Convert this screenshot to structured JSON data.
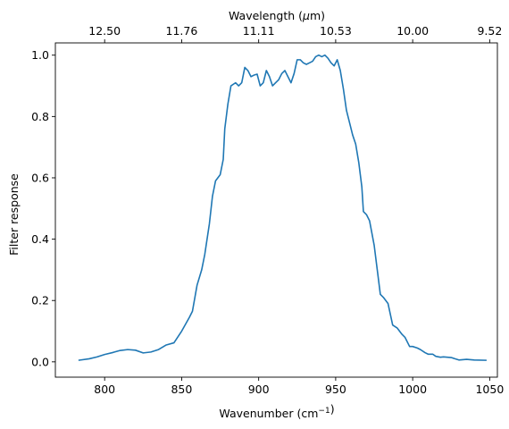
{
  "chart_data": {
    "type": "line",
    "title": "",
    "xlabel": "Wavenumber (cm⁻¹)",
    "ylabel": "Filter response",
    "top_xlabel": "Wavelength (μm)",
    "xlim": [
      768,
      1055
    ],
    "ylim": [
      -0.05,
      1.04
    ],
    "grid": false,
    "line_color": "#1f77b4",
    "x_ticks": [
      800,
      850,
      900,
      950,
      1000,
      1050
    ],
    "x_tick_labels": [
      "800",
      "850",
      "900",
      "950",
      "1000",
      "1050"
    ],
    "y_ticks": [
      0.0,
      0.2,
      0.4,
      0.6,
      0.8,
      1.0
    ],
    "y_tick_labels": [
      "0.0",
      "0.2",
      "0.4",
      "0.6",
      "0.8",
      "1.0"
    ],
    "top_ticks": [
      800,
      850,
      900,
      950,
      1000,
      1050
    ],
    "top_tick_labels": [
      "12.50",
      "11.76",
      "11.11",
      "10.53",
      "10.00",
      "9.52"
    ],
    "series": [
      {
        "x": [
          783,
          790,
          795,
          800,
          805,
          810,
          815,
          820,
          825,
          830,
          835,
          840,
          845,
          850,
          855,
          857,
          860,
          863,
          865,
          868,
          870,
          872,
          875,
          877,
          878,
          880,
          882,
          885,
          887,
          889,
          891,
          893,
          895,
          897,
          899,
          901,
          903,
          905,
          907,
          909,
          911,
          913,
          915,
          917,
          919,
          921,
          923,
          925,
          927,
          929,
          931,
          933,
          935,
          937,
          939,
          941,
          943,
          945,
          947,
          949,
          951,
          953,
          955,
          957,
          959,
          961,
          963,
          965,
          967,
          968,
          970,
          972,
          975,
          977,
          979,
          981,
          984,
          987,
          990,
          993,
          995,
          998,
          1000,
          1003,
          1005,
          1008,
          1010,
          1013,
          1015,
          1018,
          1020,
          1025,
          1030,
          1035,
          1040,
          1048
        ],
        "y": [
          0.005,
          0.01,
          0.016,
          0.024,
          0.03,
          0.037,
          0.04,
          0.038,
          0.029,
          0.032,
          0.04,
          0.055,
          0.062,
          0.1,
          0.145,
          0.165,
          0.25,
          0.3,
          0.35,
          0.45,
          0.54,
          0.59,
          0.61,
          0.66,
          0.76,
          0.84,
          0.9,
          0.91,
          0.9,
          0.91,
          0.96,
          0.95,
          0.93,
          0.935,
          0.938,
          0.9,
          0.91,
          0.95,
          0.93,
          0.9,
          0.91,
          0.92,
          0.94,
          0.95,
          0.93,
          0.91,
          0.94,
          0.985,
          0.985,
          0.975,
          0.97,
          0.975,
          0.98,
          0.995,
          1.0,
          0.995,
          1.0,
          0.99,
          0.975,
          0.965,
          0.985,
          0.95,
          0.89,
          0.82,
          0.78,
          0.74,
          0.71,
          0.65,
          0.57,
          0.49,
          0.48,
          0.46,
          0.38,
          0.3,
          0.22,
          0.21,
          0.19,
          0.12,
          0.11,
          0.09,
          0.08,
          0.05,
          0.05,
          0.045,
          0.04,
          0.03,
          0.025,
          0.025,
          0.018,
          0.015,
          0.016,
          0.014,
          0.006,
          0.008,
          0.006,
          0.005
        ]
      }
    ]
  }
}
